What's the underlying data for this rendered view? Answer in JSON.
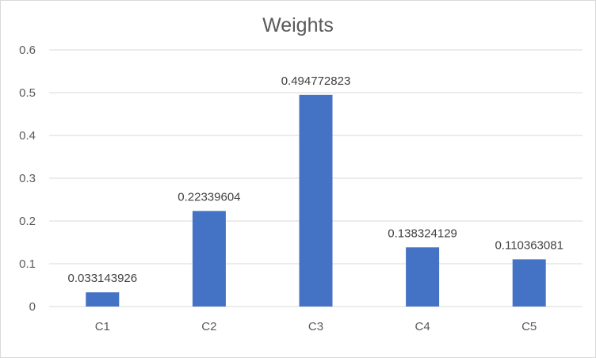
{
  "chart_data": {
    "type": "bar",
    "title": "Weights",
    "categories": [
      "C1",
      "C2",
      "C3",
      "C4",
      "C5"
    ],
    "values": [
      0.033143926,
      0.22339604,
      0.494772823,
      0.138324129,
      0.110363081
    ],
    "data_labels": [
      "0.033143926",
      "0.22339604",
      "0.494772823",
      "0.138324129",
      "0.110363081"
    ],
    "y_ticks": [
      "0",
      "0.1",
      "0.2",
      "0.3",
      "0.4",
      "0.5",
      "0.6"
    ],
    "ylim": [
      0,
      0.6
    ],
    "xlabel": "",
    "ylabel": "",
    "grid": true,
    "legend": "none",
    "bar_color": "#4472c4",
    "grid_color": "#d9d9d9"
  }
}
